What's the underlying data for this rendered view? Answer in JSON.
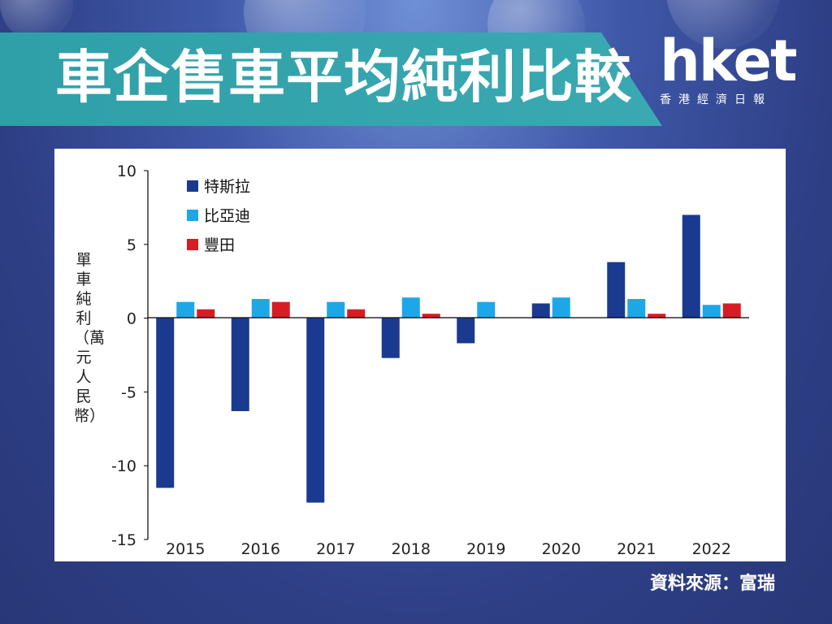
{
  "header": {
    "title": "車企售車平均純利比較"
  },
  "logo": {
    "main": "hket",
    "sub": "香港經濟日報"
  },
  "source": "資料來源：富瑞",
  "chart_data": {
    "type": "bar",
    "ylabel": "單車純利（萬元人民幣）",
    "ylim": [
      -15,
      10
    ],
    "yticks": [
      10,
      5,
      0,
      -5,
      -10,
      -15
    ],
    "categories": [
      "2015",
      "2016",
      "2017",
      "2018",
      "2019",
      "2020",
      "2021",
      "2022"
    ],
    "legend_position": "top-left",
    "grid": false,
    "series": [
      {
        "name": "特斯拉",
        "color": "#1a3a8f",
        "values": [
          -11.5,
          -6.3,
          -12.5,
          -2.7,
          -1.7,
          1.0,
          3.8,
          7.0
        ]
      },
      {
        "name": "比亞迪",
        "color": "#1ea7e6",
        "values": [
          1.1,
          1.3,
          1.1,
          1.4,
          1.1,
          1.4,
          1.3,
          0.9
        ]
      },
      {
        "name": "豐田",
        "color": "#d71d24",
        "values": [
          0.6,
          1.1,
          0.6,
          0.3,
          0.0,
          0.0,
          0.3,
          1.0
        ]
      }
    ]
  }
}
